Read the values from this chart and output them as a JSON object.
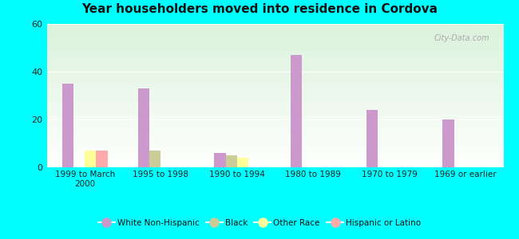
{
  "title": "Year householders moved into residence in Cordova",
  "categories": [
    "1999 to March\n2000",
    "1995 to 1998",
    "1990 to 1994",
    "1980 to 1989",
    "1970 to 1979",
    "1969 or earlier"
  ],
  "series": {
    "White Non-Hispanic": [
      35,
      33,
      6,
      47,
      24,
      20
    ],
    "Black": [
      0,
      7,
      5,
      0,
      0,
      0
    ],
    "Other Race": [
      7,
      0,
      4,
      0,
      0,
      0
    ],
    "Hispanic or Latino": [
      7,
      0,
      0,
      0,
      0,
      0
    ]
  },
  "colors": {
    "White Non-Hispanic": "#cc99cc",
    "Black": "#cccc99",
    "Other Race": "#ffff99",
    "Hispanic or Latino": "#ffaaaa"
  },
  "ylim": [
    0,
    60
  ],
  "yticks": [
    0,
    20,
    40,
    60
  ],
  "background_color": "#00ffff",
  "bar_width": 0.15
}
